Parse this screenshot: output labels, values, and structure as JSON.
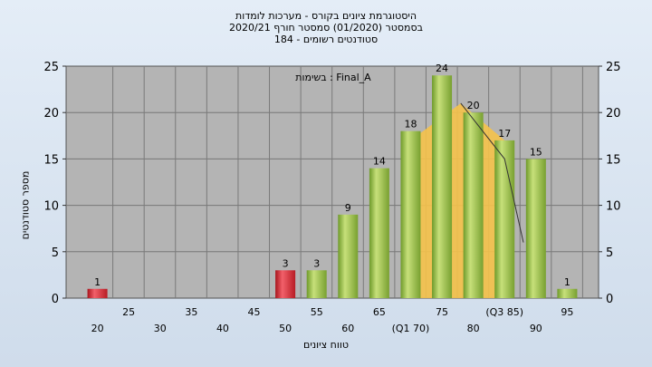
{
  "header": {
    "line1": "היסטוגרמת ציונים בקורס - מערכות לומדות",
    "line2": "בסמסטר  (01/2020)  סמסטר חורף 2020/21",
    "line3": "סטודנטים רשומים - 184"
  },
  "annotation": "בשימות : Final_A",
  "colors": {
    "plot_bg": "#b4b4b4",
    "bar_green": "#9cc24a",
    "bar_red": "#e0303a",
    "area_yellow": "#f5c24a",
    "background": "#d8e4f0"
  },
  "chart_data": {
    "type": "bar",
    "title": "",
    "xlabel": "טווח ציונים",
    "ylabel": "מספר סטודנטים",
    "ylim": [
      0,
      25
    ],
    "yticks": [
      0,
      5,
      10,
      15,
      20,
      25
    ],
    "xlim": [
      15,
      100
    ],
    "x_ticks_low": [
      {
        "x": 20,
        "label": "20"
      },
      {
        "x": 30,
        "label": "30"
      },
      {
        "x": 40,
        "label": "40"
      },
      {
        "x": 50,
        "label": "50"
      },
      {
        "x": 60,
        "label": "60"
      },
      {
        "x": 70,
        "label": "(Q1 70)"
      },
      {
        "x": 80,
        "label": "80"
      },
      {
        "x": 90,
        "label": "90"
      }
    ],
    "x_ticks_high": [
      {
        "x": 25,
        "label": "25"
      },
      {
        "x": 35,
        "label": "35"
      },
      {
        "x": 45,
        "label": "45"
      },
      {
        "x": 55,
        "label": "55"
      },
      {
        "x": 65,
        "label": "65"
      },
      {
        "x": 75,
        "label": "75"
      },
      {
        "x": 85,
        "label": "(Q3 85)"
      },
      {
        "x": 95,
        "label": "95"
      }
    ],
    "bars": [
      {
        "x": 20,
        "value": 1,
        "color": "red"
      },
      {
        "x": 50,
        "value": 3,
        "color": "red"
      },
      {
        "x": 55,
        "value": 3,
        "color": "green"
      },
      {
        "x": 60,
        "value": 9,
        "color": "green"
      },
      {
        "x": 65,
        "value": 14,
        "color": "green"
      },
      {
        "x": 70,
        "value": 18,
        "color": "green"
      },
      {
        "x": 75,
        "value": 24,
        "color": "green"
      },
      {
        "x": 80,
        "value": 20,
        "color": "green"
      },
      {
        "x": 85,
        "value": 17,
        "color": "green"
      },
      {
        "x": 90,
        "value": 15,
        "color": "green"
      },
      {
        "x": 95,
        "value": 1,
        "color": "green"
      }
    ],
    "area_points": [
      {
        "x": 70,
        "y": 17
      },
      {
        "x": 78,
        "y": 21
      },
      {
        "x": 85,
        "y": 17
      },
      {
        "x": 85,
        "y": 0
      },
      {
        "x": 70,
        "y": 0
      }
    ],
    "line_points": [
      {
        "x": 78,
        "y": 21
      },
      {
        "x": 85,
        "y": 15
      },
      {
        "x": 88,
        "y": 6
      }
    ]
  }
}
